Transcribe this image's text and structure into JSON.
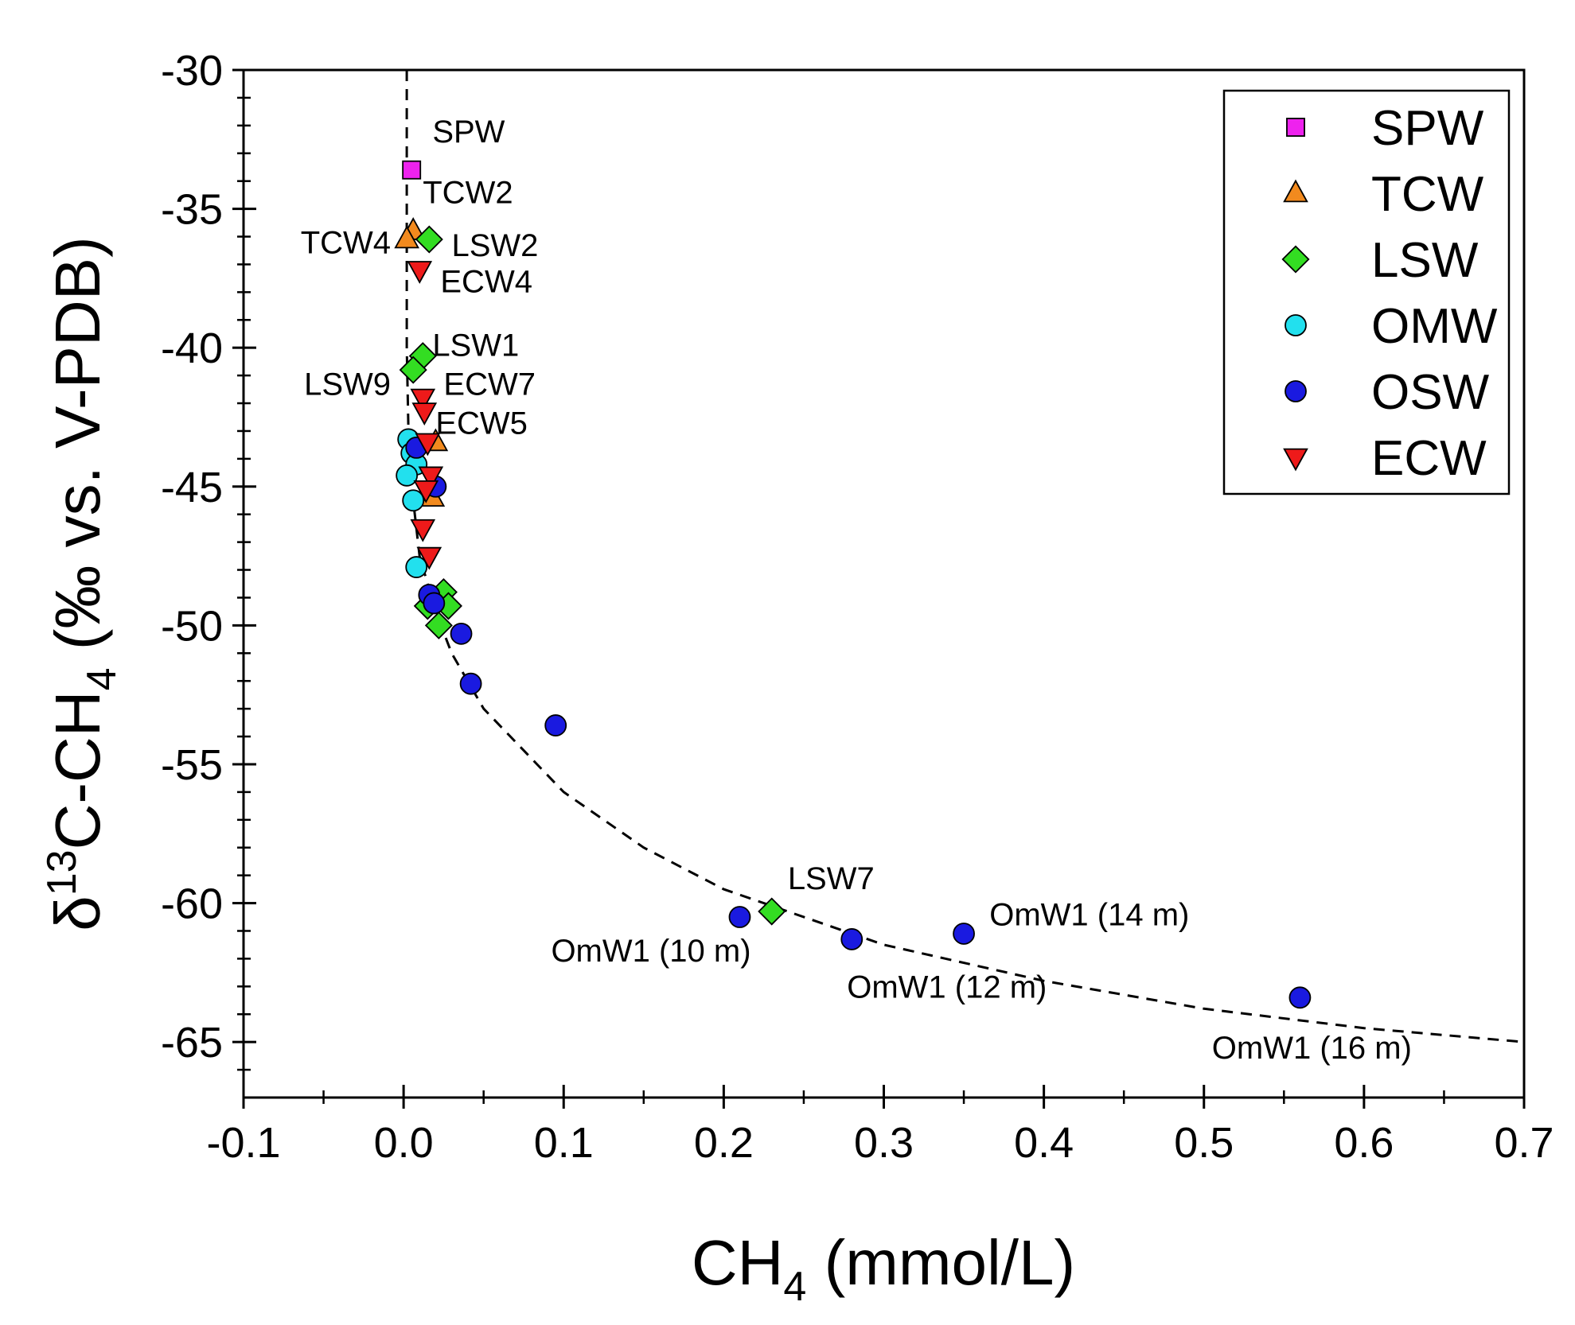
{
  "chart_data": {
    "type": "scatter",
    "title": "",
    "xlabel": {
      "main": "CH",
      "sub": "4",
      "rest": " (mmol/L)"
    },
    "ylabel": {
      "p1": "δ",
      "sup": "13",
      "p2": "C-CH",
      "sub": "4",
      "p3": " (‰ vs. V-PDB)"
    },
    "xlim": [
      -0.1,
      0.7
    ],
    "ylim": [
      -67,
      -30
    ],
    "xticks": [
      -0.1,
      0.0,
      0.1,
      0.2,
      0.3,
      0.4,
      0.5,
      0.6,
      0.7
    ],
    "xtick_labels": [
      "-0.1",
      "0.0",
      "0.1",
      "0.2",
      "0.3",
      "0.4",
      "0.5",
      "0.6",
      "0.7"
    ],
    "yticks": [
      -30,
      -35,
      -40,
      -45,
      -50,
      -55,
      -60,
      -65
    ],
    "ytick_labels": [
      "-30",
      "-35",
      "-40",
      "-45",
      "-50",
      "-55",
      "-60",
      "-65"
    ],
    "legend_position": "top-right",
    "series": [
      {
        "name": "SPW",
        "marker": "square",
        "color": "#ee22ee",
        "points": [
          [
            0.005,
            -33.6
          ]
        ]
      },
      {
        "name": "TCW",
        "marker": "triangle-up",
        "color": "#f28a1e",
        "points": [
          [
            0.006,
            -35.8
          ],
          [
            0.002,
            -36.1
          ],
          [
            0.02,
            -43.4
          ],
          [
            0.018,
            -45.4
          ]
        ]
      },
      {
        "name": "LSW",
        "marker": "diamond",
        "color": "#33dd22",
        "points": [
          [
            0.016,
            -36.1
          ],
          [
            0.012,
            -40.3
          ],
          [
            0.006,
            -40.8
          ],
          [
            0.025,
            -48.8
          ],
          [
            0.015,
            -49.3
          ],
          [
            0.028,
            -49.3
          ],
          [
            0.022,
            -50.0
          ],
          [
            0.23,
            -60.3
          ]
        ]
      },
      {
        "name": "OMW",
        "marker": "circle",
        "color": "#22e0ee",
        "points": [
          [
            0.003,
            -43.3
          ],
          [
            0.005,
            -43.8
          ],
          [
            0.008,
            -44.2
          ],
          [
            0.002,
            -44.6
          ],
          [
            0.006,
            -45.5
          ],
          [
            0.008,
            -47.9
          ]
        ]
      },
      {
        "name": "OSW",
        "marker": "circle",
        "color": "#1a1ae0",
        "points": [
          [
            0.008,
            -43.6
          ],
          [
            0.02,
            -45.0
          ],
          [
            0.016,
            -48.9
          ],
          [
            0.019,
            -49.2
          ],
          [
            0.036,
            -50.3
          ],
          [
            0.042,
            -52.1
          ],
          [
            0.095,
            -53.6
          ],
          [
            0.21,
            -60.5
          ],
          [
            0.28,
            -61.3
          ],
          [
            0.35,
            -61.1
          ],
          [
            0.56,
            -63.4
          ]
        ]
      },
      {
        "name": "ECW",
        "marker": "triangle-down",
        "color": "#ee1a1a",
        "points": [
          [
            0.01,
            -37.2
          ],
          [
            0.012,
            -41.8
          ],
          [
            0.013,
            -42.3
          ],
          [
            0.015,
            -43.4
          ],
          [
            0.017,
            -44.6
          ],
          [
            0.014,
            -45.1
          ],
          [
            0.012,
            -46.5
          ],
          [
            0.016,
            -47.5
          ]
        ]
      }
    ],
    "annotations": [
      {
        "text": "SPW",
        "x": 0.018,
        "y": -32.6,
        "anchor": "start"
      },
      {
        "text": "TCW2",
        "x": 0.012,
        "y": -34.8,
        "anchor": "start"
      },
      {
        "text": "TCW4",
        "x": -0.008,
        "y": -36.6,
        "anchor": "end"
      },
      {
        "text": "LSW2",
        "x": 0.03,
        "y": -36.7,
        "anchor": "start"
      },
      {
        "text": "ECW4",
        "x": 0.023,
        "y": -38.0,
        "anchor": "start"
      },
      {
        "text": "LSW1",
        "x": 0.018,
        "y": -40.3,
        "anchor": "start"
      },
      {
        "text": "LSW9",
        "x": -0.008,
        "y": -41.7,
        "anchor": "end"
      },
      {
        "text": "ECW7",
        "x": 0.025,
        "y": -41.7,
        "anchor": "start"
      },
      {
        "text": "ECW5",
        "x": 0.02,
        "y": -43.1,
        "anchor": "start"
      },
      {
        "text": "LSW7",
        "x": 0.24,
        "y": -59.5,
        "anchor": "start"
      },
      {
        "text": "OmW1 (10 m)",
        "x": 0.217,
        "y": -62.1,
        "anchor": "end"
      },
      {
        "text": "OmW1 (12 m)",
        "x": 0.277,
        "y": -63.4,
        "anchor": "start"
      },
      {
        "text": "OmW1 (14 m)",
        "x": 0.366,
        "y": -60.8,
        "anchor": "start"
      },
      {
        "text": "OmW1 (16 m)",
        "x": 0.505,
        "y": -65.6,
        "anchor": "start"
      }
    ],
    "trend_line": {
      "style": "dashed",
      "points": [
        [
          0.002,
          -30
        ],
        [
          0.002,
          -35
        ],
        [
          0.002,
          -40
        ],
        [
          0.003,
          -43
        ],
        [
          0.005,
          -45
        ],
        [
          0.01,
          -47.5
        ],
        [
          0.02,
          -49.5
        ],
        [
          0.03,
          -51
        ],
        [
          0.05,
          -53
        ],
        [
          0.1,
          -56
        ],
        [
          0.15,
          -58
        ],
        [
          0.2,
          -59.5
        ],
        [
          0.3,
          -61.5
        ],
        [
          0.4,
          -62.8
        ],
        [
          0.5,
          -63.8
        ],
        [
          0.6,
          -64.5
        ],
        [
          0.7,
          -65
        ]
      ]
    }
  }
}
